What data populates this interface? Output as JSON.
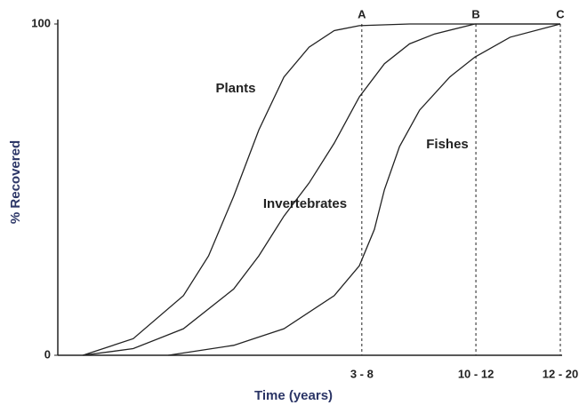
{
  "chart_data": {
    "type": "line",
    "xlabel": "Time (years)",
    "ylabel": "% Recovered",
    "xlim": [
      0,
      100
    ],
    "ylim": [
      0,
      100
    ],
    "xticks": [
      {
        "value": 60.5,
        "label": "3 - 8"
      },
      {
        "value": 83.2,
        "label": "10 - 12"
      },
      {
        "value": 100,
        "label": "12 - 20"
      }
    ],
    "yticks": [
      0,
      100
    ],
    "tick_markers": [
      "A",
      "B",
      "C"
    ],
    "series": [
      {
        "name": "Plants",
        "color": "#222222",
        "x": [
          5,
          15,
          25,
          30,
          35,
          40,
          45,
          50,
          55,
          60,
          70,
          83,
          100
        ],
        "values": [
          0,
          5,
          18,
          30,
          48,
          68,
          84,
          93,
          98,
          99.5,
          100,
          100,
          100
        ]
      },
      {
        "name": "Invertebrates",
        "color": "#222222",
        "x": [
          5,
          15,
          25,
          35,
          40,
          45,
          50,
          55,
          60,
          65,
          70,
          75,
          83,
          100
        ],
        "values": [
          0,
          2,
          8,
          20,
          30,
          42,
          52,
          64,
          78,
          88,
          94,
          97,
          100,
          100
        ]
      },
      {
        "name": "Fishes",
        "color": "#222222",
        "x": [
          22,
          35,
          45,
          55,
          60,
          63,
          65,
          68,
          72,
          78,
          83,
          90,
          100
        ],
        "values": [
          0,
          3,
          8,
          18,
          27,
          38,
          50,
          63,
          74,
          84,
          90,
          96,
          100
        ]
      }
    ]
  }
}
